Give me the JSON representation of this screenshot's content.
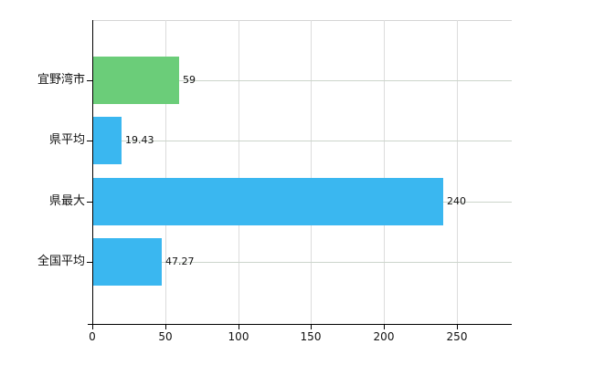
{
  "chart_data": {
    "type": "bar",
    "orientation": "horizontal",
    "title": "",
    "xlabel": "",
    "ylabel": "",
    "categories": [
      "宜野湾市",
      "県平均",
      "県最大",
      "全国平均"
    ],
    "values": [
      59,
      19.43,
      240,
      47.27
    ],
    "value_labels": [
      "59",
      "19.43",
      "240",
      "47.27"
    ],
    "bar_colors": [
      "#6bcd79",
      "#3ab7f0",
      "#3ab7f0",
      "#3ab7f0"
    ],
    "x_ticks": [
      0,
      50,
      100,
      150,
      200,
      250
    ],
    "x_tick_labels": [
      "0",
      "50",
      "100",
      "150",
      "200",
      "250"
    ],
    "xlim": [
      0,
      287.5
    ],
    "grid": true,
    "legend_position": "none",
    "colors": {
      "background": "#ffffff",
      "axis": "#000000",
      "vertical_grid": "#dcdcdc",
      "horizontal_grid": "#ccd5cb",
      "plot_top_border": "#d4d4d4",
      "text": "#111111",
      "highlight_bar": "#6bcd79",
      "default_bar": "#3ab7f0"
    }
  }
}
